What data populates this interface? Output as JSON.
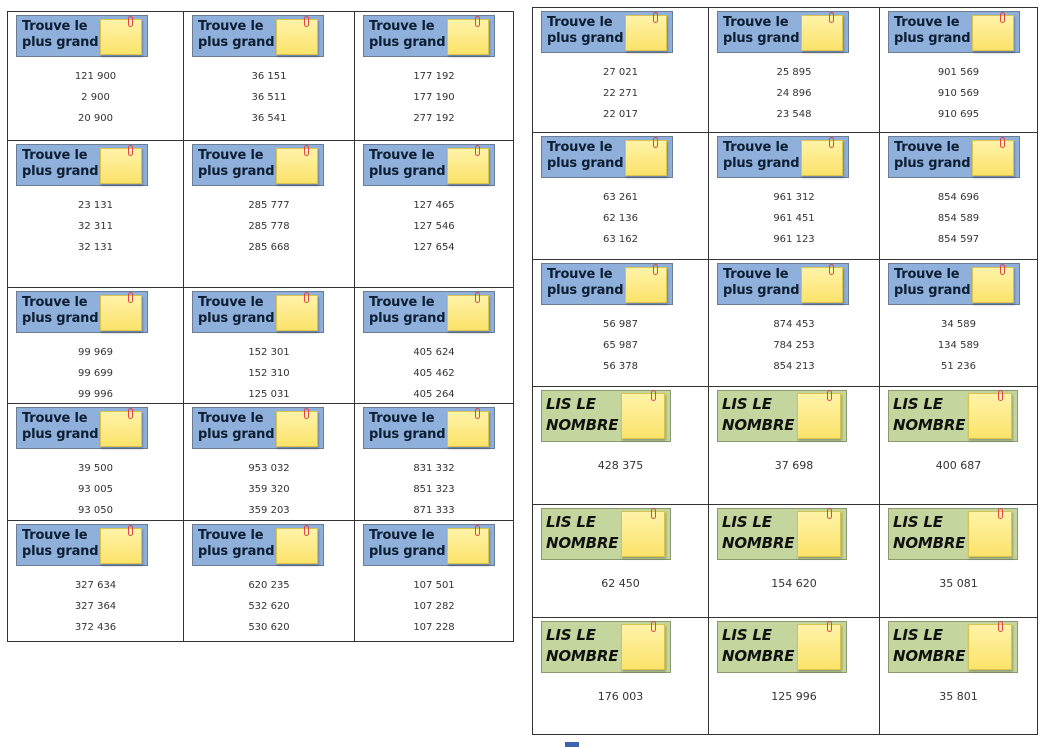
{
  "find_label": "Trouve le plus grand",
  "read_label": "LIS LE NOMBRE",
  "left_cards": [
    [
      "121 900",
      "2 900",
      "20 900"
    ],
    [
      "36 151",
      "36 511",
      "36 541"
    ],
    [
      "177 192",
      "177 190",
      "277 192"
    ],
    [
      "23 131",
      "32 311",
      "32 131"
    ],
    [
      "285 777",
      "285 778",
      "285 668"
    ],
    [
      "127 465",
      "127 546",
      "127 654"
    ],
    [
      "99 969",
      "99 699",
      "99 996"
    ],
    [
      "152 301",
      "152 310",
      "125 031"
    ],
    [
      "405 624",
      "405 462",
      "405 264"
    ],
    [
      "39 500",
      "93 005",
      "93 050"
    ],
    [
      "953 032",
      "359 320",
      "359 203"
    ],
    [
      "831 332",
      "851 323",
      "871 333"
    ],
    [
      "327 634",
      "327 364",
      "372 436"
    ],
    [
      "620 235",
      "532 620",
      "530 620"
    ],
    [
      "107 501",
      "107 282",
      "107 228"
    ]
  ],
  "right_find_cards": [
    [
      "27 021",
      "22 271",
      "22 017"
    ],
    [
      "25 895",
      "24 896",
      "23 548"
    ],
    [
      "901 569",
      "910 569",
      "910 695"
    ],
    [
      "63 261",
      "62 136",
      "63 162"
    ],
    [
      "961 312",
      "961 451",
      "961 123"
    ],
    [
      "854 696",
      "854 589",
      "854 597"
    ],
    [
      "56 987",
      "65 987",
      "56 378"
    ],
    [
      "874 453",
      "784 253",
      "854 213"
    ],
    [
      "34 589",
      "134 589",
      "51 236"
    ]
  ],
  "right_read_cards": [
    "428 375",
    "37 698",
    "400 687",
    "62 450",
    "154 620",
    "35 081",
    "176 003",
    "125 996",
    "35 801"
  ]
}
